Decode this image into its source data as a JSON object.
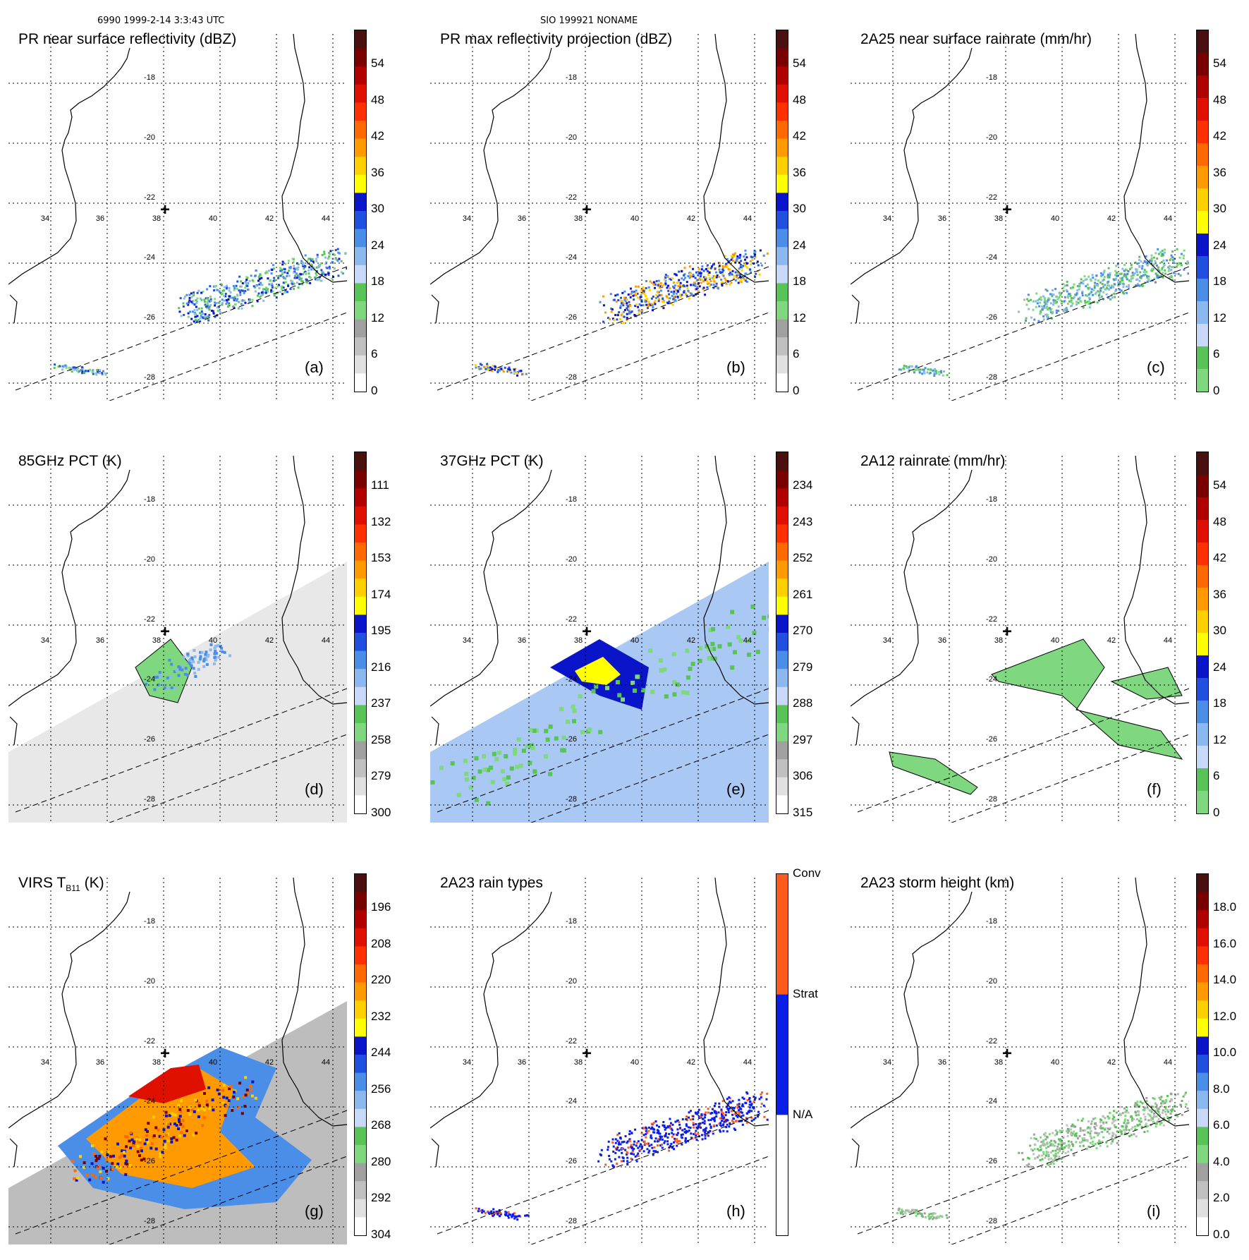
{
  "header": {
    "left": "6990 1999-2-14 3:3:43 UTC",
    "center": "SIO 199921 NONAME"
  },
  "lon_labels": [
    "34",
    "36",
    "38",
    "40",
    "42",
    "44"
  ],
  "lat_labels": [
    "-18",
    "-20",
    "-22",
    "-24",
    "-26",
    "-28"
  ],
  "panels": [
    {
      "id": "a",
      "title": "PR near surface reflectivity (dBZ)",
      "letter": "(a)",
      "colorbar": "refl",
      "ticks": [
        "54",
        "48",
        "42",
        "36",
        "30",
        "24",
        "18",
        "12",
        "6",
        "0"
      ],
      "field": "pr_low"
    },
    {
      "id": "b",
      "title": "PR max reflectivity projection (dBZ)",
      "letter": "(b)",
      "colorbar": "refl",
      "ticks": [
        "54",
        "48",
        "42",
        "36",
        "30",
        "24",
        "18",
        "12",
        "6",
        "0"
      ],
      "field": "pr_low_dense"
    },
    {
      "id": "c",
      "title": "2A25 near surface rainrate (mm/hr)",
      "letter": "(c)",
      "colorbar": "rain",
      "ticks": [
        "54",
        "48",
        "42",
        "36",
        "30",
        "24",
        "18",
        "12",
        "6",
        "0"
      ],
      "field": "pr_low_green"
    },
    {
      "id": "d",
      "title": "85GHz PCT (K)",
      "letter": "(d)",
      "colorbar": "refl",
      "ticks": [
        "111",
        "132",
        "153",
        "174",
        "195",
        "216",
        "237",
        "258",
        "279",
        "300"
      ],
      "field": "tmi_gray"
    },
    {
      "id": "e",
      "title": "37GHz PCT (K)",
      "letter": "(e)",
      "colorbar": "refl",
      "ticks": [
        "234",
        "243",
        "252",
        "261",
        "270",
        "279",
        "288",
        "297",
        "306",
        "315"
      ],
      "field": "tmi_blue"
    },
    {
      "id": "f",
      "title": "2A12 rainrate (mm/hr)",
      "letter": "(f)",
      "colorbar": "rain",
      "ticks": [
        "54",
        "48",
        "42",
        "36",
        "30",
        "24",
        "18",
        "12",
        "6",
        "0"
      ],
      "field": "tmi_green"
    },
    {
      "id": "g",
      "title": "VIRS T",
      "title_sub": "B11",
      "title_tail": " (K)",
      "letter": "(g)",
      "colorbar": "refl",
      "ticks": [
        "196",
        "208",
        "220",
        "232",
        "244",
        "256",
        "268",
        "280",
        "292",
        "304"
      ],
      "field": "virs"
    },
    {
      "id": "h",
      "title": "2A23 rain types",
      "letter": "(h)",
      "colorbar": "types",
      "ticks": [
        "Conv",
        "Strat",
        "N/A"
      ],
      "field": "pr_types"
    },
    {
      "id": "i",
      "title": "2A23 storm height (km)",
      "letter": "(i)",
      "colorbar": "refl",
      "ticks": [
        "18.0",
        "16.0",
        "14.0",
        "12.0",
        "10.0",
        "8.0",
        "6.0",
        "4.0",
        "2.0",
        "0.0"
      ],
      "field": "pr_height"
    }
  ],
  "colors": {
    "refl_scale": [
      "#ffffff",
      "#e0e0e0",
      "#c0c0c0",
      "#a0a0a0",
      "#7fd87f",
      "#58c458",
      "#c8d8f8",
      "#8cb8f0",
      "#4a8ee8",
      "#2050e0",
      "#0a14c8",
      "#ffff00",
      "#ffd000",
      "#ff9a00",
      "#ff6a00",
      "#ff3000",
      "#e01000",
      "#b00000",
      "#7a0000",
      "#4a1010"
    ],
    "rain_scale": [
      "#7fd87f",
      "#58c458",
      "#c8d8f8",
      "#8cb8f0",
      "#4a8ee8",
      "#2050e0",
      "#0a14c8",
      "#ffff00",
      "#ffd000",
      "#ff9a00",
      "#ff6a00",
      "#ff3000",
      "#e01000",
      "#b00000",
      "#7a0000",
      "#4a1010"
    ],
    "types": [
      "#ff5a1e",
      "#0a1ee6",
      "#ffffff"
    ]
  }
}
